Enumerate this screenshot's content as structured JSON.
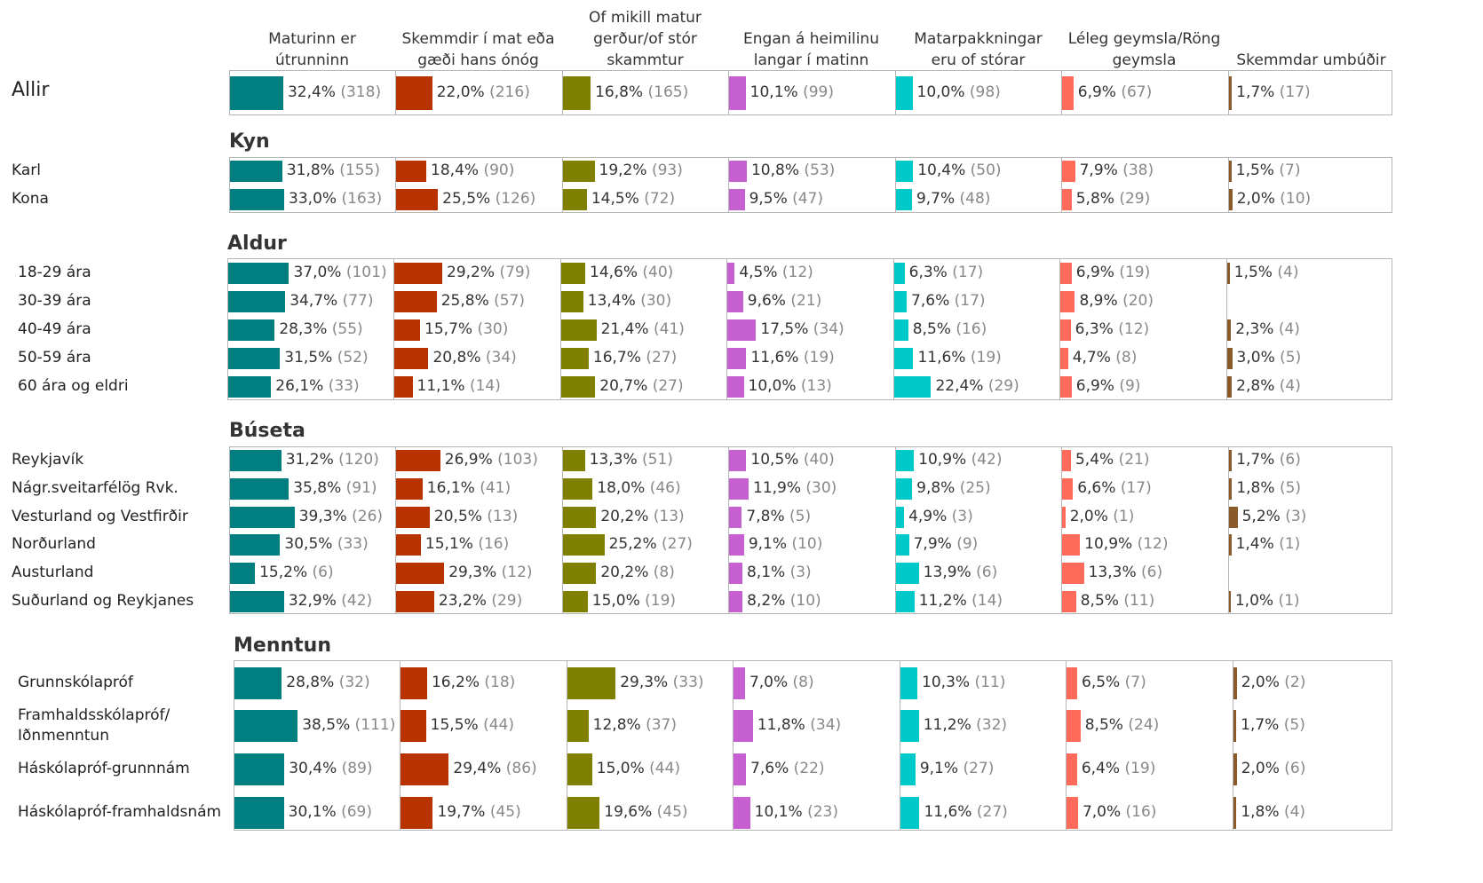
{
  "chart_data": {
    "type": "bar",
    "columns": [
      {
        "name": "Maturinn er útrunninn",
        "color": "#007f80"
      },
      {
        "name": "Skemmdir í mat eða gæði hans ónóg",
        "color": "#b83300"
      },
      {
        "name": "Of mikill matur gerður/of stór skammtur",
        "color": "#808000"
      },
      {
        "name": "Engan á heimilinu langar í matinn",
        "color": "#c55fd2"
      },
      {
        "name": "Matarpakkningar eru of stórar",
        "color": "#00c9c9"
      },
      {
        "name": "Léleg geymsla/Röng geymsla",
        "color": "#ff6b5b"
      },
      {
        "name": "Skemmdar umbúðir",
        "color": "#8b5a2b"
      }
    ],
    "groups": [
      {
        "rows": [
          {
            "label": "Allir",
            "values": [
              32.4,
              22.0,
              16.8,
              10.1,
              10.0,
              6.9,
              1.7
            ],
            "value_labels": [
              "32,4%",
              "22,0%",
              "16,8%",
              "10,1%",
              "10,0%",
              "6,9%",
              "1,7%"
            ],
            "counts": [
              318,
              216,
              165,
              99,
              98,
              67,
              17
            ],
            "count_labels": [
              "(318)",
              "(216)",
              "(165)",
              "(99)",
              "(98)",
              "(67)",
              "(17)"
            ]
          }
        ]
      },
      {
        "title": "Kyn",
        "rows": [
          {
            "label": "Karl",
            "values": [
              31.8,
              18.4,
              19.2,
              10.8,
              10.4,
              7.9,
              1.5
            ],
            "value_labels": [
              "31,8%",
              "18,4%",
              "19,2%",
              "10,8%",
              "10,4%",
              "7,9%",
              "1,5%"
            ],
            "counts": [
              155,
              90,
              93,
              53,
              50,
              38,
              7
            ],
            "count_labels": [
              "(155)",
              "(90)",
              "(93)",
              "(53)",
              "(50)",
              "(38)",
              "(7)"
            ]
          },
          {
            "label": "Kona",
            "values": [
              33.0,
              25.5,
              14.5,
              9.5,
              9.7,
              5.8,
              2.0
            ],
            "value_labels": [
              "33,0%",
              "25,5%",
              "14,5%",
              "9,5%",
              "9,7%",
              "5,8%",
              "2,0%"
            ],
            "counts": [
              163,
              126,
              72,
              47,
              48,
              29,
              10
            ],
            "count_labels": [
              "(163)",
              "(126)",
              "(72)",
              "(47)",
              "(48)",
              "(29)",
              "(10)"
            ]
          }
        ]
      },
      {
        "title": "Aldur",
        "rows": [
          {
            "label": "18-29 ára",
            "values": [
              37.0,
              29.2,
              14.6,
              4.5,
              6.3,
              6.9,
              1.5
            ],
            "value_labels": [
              "37,0%",
              "29,2%",
              "14,6%",
              "4,5%",
              "6,3%",
              "6,9%",
              "1,5%"
            ],
            "counts": [
              101,
              79,
              40,
              12,
              17,
              19,
              4
            ],
            "count_labels": [
              "(101)",
              "(79)",
              "(40)",
              "(12)",
              "(17)",
              "(19)",
              "(4)"
            ]
          },
          {
            "label": "30-39 ára",
            "values": [
              34.7,
              25.8,
              13.4,
              9.6,
              7.6,
              8.9,
              null
            ],
            "value_labels": [
              "34,7%",
              "25,8%",
              "13,4%",
              "9,6%",
              "7,6%",
              "8,9%",
              null
            ],
            "counts": [
              77,
              57,
              30,
              21,
              17,
              20,
              null
            ],
            "count_labels": [
              "(77)",
              "(57)",
              "(30)",
              "(21)",
              "(17)",
              "(20)",
              null
            ]
          },
          {
            "label": "40-49 ára",
            "values": [
              28.3,
              15.7,
              21.4,
              17.5,
              8.5,
              6.3,
              2.3
            ],
            "value_labels": [
              "28,3%",
              "15,7%",
              "21,4%",
              "17,5%",
              "8,5%",
              "6,3%",
              "2,3%"
            ],
            "counts": [
              55,
              30,
              41,
              34,
              16,
              12,
              4
            ],
            "count_labels": [
              "(55)",
              "(30)",
              "(41)",
              "(34)",
              "(16)",
              "(12)",
              "(4)"
            ]
          },
          {
            "label": "50-59 ára",
            "values": [
              31.5,
              20.8,
              16.7,
              11.6,
              11.6,
              4.7,
              3.0
            ],
            "value_labels": [
              "31,5%",
              "20,8%",
              "16,7%",
              "11,6%",
              "11,6%",
              "4,7%",
              "3,0%"
            ],
            "counts": [
              52,
              34,
              27,
              19,
              19,
              8,
              5
            ],
            "count_labels": [
              "(52)",
              "(34)",
              "(27)",
              "(19)",
              "(19)",
              "(8)",
              "(5)"
            ]
          },
          {
            "label": "60 ára og eldri",
            "values": [
              26.1,
              11.1,
              20.7,
              10.0,
              22.4,
              6.9,
              2.8
            ],
            "value_labels": [
              "26,1%",
              "11,1%",
              "20,7%",
              "10,0%",
              "22,4%",
              "6,9%",
              "2,8%"
            ],
            "counts": [
              33,
              14,
              27,
              13,
              29,
              9,
              4
            ],
            "count_labels": [
              "(33)",
              "(14)",
              "(27)",
              "(13)",
              "(29)",
              "(9)",
              "(4)"
            ]
          }
        ]
      },
      {
        "title": "Búseta",
        "rows": [
          {
            "label": "Reykjavík",
            "values": [
              31.2,
              26.9,
              13.3,
              10.5,
              10.9,
              5.4,
              1.7
            ],
            "value_labels": [
              "31,2%",
              "26,9%",
              "13,3%",
              "10,5%",
              "10,9%",
              "5,4%",
              "1,7%"
            ],
            "counts": [
              120,
              103,
              51,
              40,
              42,
              21,
              6
            ],
            "count_labels": [
              "(120)",
              "(103)",
              "(51)",
              "(40)",
              "(42)",
              "(21)",
              "(6)"
            ]
          },
          {
            "label": "Nágr.sveitarfélög Rvk.",
            "values": [
              35.8,
              16.1,
              18.0,
              11.9,
              9.8,
              6.6,
              1.8
            ],
            "value_labels": [
              "35,8%",
              "16,1%",
              "18,0%",
              "11,9%",
              "9,8%",
              "6,6%",
              "1,8%"
            ],
            "counts": [
              91,
              41,
              46,
              30,
              25,
              17,
              5
            ],
            "count_labels": [
              "(91)",
              "(41)",
              "(46)",
              "(30)",
              "(25)",
              "(17)",
              "(5)"
            ]
          },
          {
            "label": "Vesturland og Vestfirðir",
            "values": [
              39.3,
              20.5,
              20.2,
              7.8,
              4.9,
              2.0,
              5.2
            ],
            "value_labels": [
              "39,3%",
              "20,5%",
              "20,2%",
              "7,8%",
              "4,9%",
              "2,0%",
              "5,2%"
            ],
            "counts": [
              26,
              13,
              13,
              5,
              3,
              1,
              3
            ],
            "count_labels": [
              "(26)",
              "(13)",
              "(13)",
              "(5)",
              "(3)",
              "(1)",
              "(3)"
            ]
          },
          {
            "label": "Norðurland",
            "values": [
              30.5,
              15.1,
              25.2,
              9.1,
              7.9,
              10.9,
              1.4
            ],
            "value_labels": [
              "30,5%",
              "15,1%",
              "25,2%",
              "9,1%",
              "7,9%",
              "10,9%",
              "1,4%"
            ],
            "counts": [
              33,
              16,
              27,
              10,
              9,
              12,
              1
            ],
            "count_labels": [
              "(33)",
              "(16)",
              "(27)",
              "(10)",
              "(9)",
              "(12)",
              "(1)"
            ]
          },
          {
            "label": "Austurland",
            "values": [
              15.2,
              29.3,
              20.2,
              8.1,
              13.9,
              13.3,
              null
            ],
            "value_labels": [
              "15,2%",
              "29,3%",
              "20,2%",
              "8,1%",
              "13,9%",
              "13,3%",
              null
            ],
            "counts": [
              6,
              12,
              8,
              3,
              6,
              6,
              null
            ],
            "count_labels": [
              "(6)",
              "(12)",
              "(8)",
              "(3)",
              "(6)",
              "(6)",
              null
            ]
          },
          {
            "label": "Suðurland og Reykjanes",
            "values": [
              32.9,
              23.2,
              15.0,
              8.2,
              11.2,
              8.5,
              1.0
            ],
            "value_labels": [
              "32,9%",
              "23,2%",
              "15,0%",
              "8,2%",
              "11,2%",
              "8,5%",
              "1,0%"
            ],
            "counts": [
              42,
              29,
              19,
              10,
              14,
              11,
              1
            ],
            "count_labels": [
              "(42)",
              "(29)",
              "(19)",
              "(10)",
              "(14)",
              "(11)",
              "(1)"
            ]
          }
        ]
      },
      {
        "title": "Menntun",
        "rows": [
          {
            "label": "Grunnskólapróf",
            "values": [
              28.8,
              16.2,
              29.3,
              7.0,
              10.3,
              6.5,
              2.0
            ],
            "value_labels": [
              "28,8%",
              "16,2%",
              "29,3%",
              "7,0%",
              "10,3%",
              "6,5%",
              "2,0%"
            ],
            "counts": [
              32,
              18,
              33,
              8,
              11,
              7,
              2
            ],
            "count_labels": [
              "(32)",
              "(18)",
              "(33)",
              "(8)",
              "(11)",
              "(7)",
              "(2)"
            ]
          },
          {
            "label": "Framhaldsskólapróf/\nIðnmenntun",
            "values": [
              38.5,
              15.5,
              12.8,
              11.8,
              11.2,
              8.5,
              1.7
            ],
            "value_labels": [
              "38,5%",
              "15,5%",
              "12,8%",
              "11,8%",
              "11,2%",
              "8,5%",
              "1,7%"
            ],
            "counts": [
              111,
              44,
              37,
              34,
              32,
              24,
              5
            ],
            "count_labels": [
              "(111)",
              "(44)",
              "(37)",
              "(34)",
              "(32)",
              "(24)",
              "(5)"
            ]
          },
          {
            "label": "Háskólapróf-grunnnám",
            "values": [
              30.4,
              29.4,
              15.0,
              7.6,
              9.1,
              6.4,
              2.0
            ],
            "value_labels": [
              "30,4%",
              "29,4%",
              "15,0%",
              "7,6%",
              "9,1%",
              "6,4%",
              "2,0%"
            ],
            "counts": [
              89,
              86,
              44,
              22,
              27,
              19,
              6
            ],
            "count_labels": [
              "(89)",
              "(86)",
              "(44)",
              "(22)",
              "(27)",
              "(19)",
              "(6)"
            ]
          },
          {
            "label": "Háskólapróf-framhaldsnám",
            "values": [
              30.1,
              19.7,
              19.6,
              10.1,
              11.6,
              7.0,
              1.8
            ],
            "value_labels": [
              "30,1%",
              "19,7%",
              "19,6%",
              "10,1%",
              "11,6%",
              "7,0%",
              "1,8%"
            ],
            "counts": [
              69,
              45,
              45,
              23,
              27,
              16,
              4
            ],
            "count_labels": [
              "(69)",
              "(45)",
              "(45)",
              "(23)",
              "(27)",
              "(16)",
              "(4)"
            ]
          }
        ]
      }
    ]
  }
}
